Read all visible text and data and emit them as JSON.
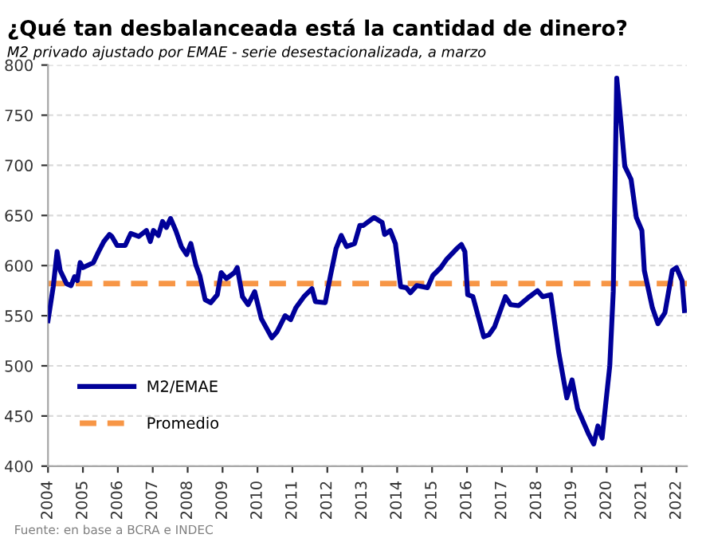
{
  "chart_data": {
    "type": "line",
    "title": "¿Qué tan desbalanceada está la cantidad de dinero?",
    "subtitle": "M2 privado ajustado por EMAE - serie desestacionalizada, a marzo",
    "annotations": [
      "Fuente: en base a BCRA e INDEC"
    ],
    "series": [
      {
        "name": "M2/EMAE",
        "color": "#000099",
        "x": [
          2004.0,
          2004.15,
          2004.26,
          2004.35,
          2004.53,
          2004.66,
          2004.76,
          2004.84,
          2004.92,
          2005.0,
          2005.3,
          2005.45,
          2005.6,
          2005.76,
          2005.83,
          2005.98,
          2006.21,
          2006.37,
          2006.6,
          2006.82,
          2006.93,
          2007.02,
          2007.16,
          2007.28,
          2007.39,
          2007.51,
          2007.66,
          2007.82,
          2007.97,
          2008.09,
          2008.24,
          2008.35,
          2008.5,
          2008.66,
          2008.85,
          2008.96,
          2009.11,
          2009.34,
          2009.42,
          2009.57,
          2009.73,
          2009.92,
          2010.11,
          2010.41,
          2010.56,
          2010.79,
          2010.95,
          2011.1,
          2011.33,
          2011.56,
          2011.66,
          2011.94,
          2012.09,
          2012.25,
          2012.4,
          2012.55,
          2012.78,
          2012.93,
          2013.03,
          2013.34,
          2013.57,
          2013.64,
          2013.8,
          2013.95,
          2014.1,
          2014.26,
          2014.38,
          2014.56,
          2014.87,
          2015.02,
          2015.25,
          2015.41,
          2015.71,
          2015.84,
          2015.94,
          2016.02,
          2016.17,
          2016.48,
          2016.63,
          2016.79,
          2017.1,
          2017.25,
          2017.48,
          2017.79,
          2018.02,
          2018.17,
          2018.4,
          2018.63,
          2018.86,
          2019.01,
          2019.17,
          2019.47,
          2019.63,
          2019.75,
          2019.87,
          2020.09,
          2020.19,
          2020.29,
          2020.42,
          2020.52,
          2020.7,
          2020.85,
          2021.01,
          2021.08,
          2021.31,
          2021.47,
          2021.67,
          2021.88,
          2022.0,
          2022.16,
          2022.23
        ],
        "values": [
          545,
          579,
          614,
          595,
          582,
          580,
          589,
          585,
          603,
          598,
          603,
          614,
          624,
          631,
          629,
          620,
          620,
          632,
          629,
          635,
          624,
          635,
          630,
          644,
          638,
          647,
          635,
          619,
          611,
          622,
          600,
          590,
          566,
          563,
          571,
          593,
          587,
          593,
          598,
          569,
          561,
          574,
          547,
          528,
          534,
          550,
          546,
          558,
          569,
          577,
          564,
          563,
          590,
          617,
          630,
          619,
          622,
          640,
          640,
          648,
          643,
          631,
          635,
          622,
          579,
          578,
          573,
          580,
          578,
          590,
          598,
          606,
          617,
          621,
          614,
          571,
          569,
          529,
          531,
          539,
          569,
          561,
          560,
          569,
          575,
          569,
          571,
          513,
          468,
          486,
          457,
          433,
          422,
          440,
          428,
          500,
          574,
          787,
          739,
          699,
          686,
          648,
          635,
          595,
          558,
          542,
          553,
          595,
          598,
          585,
          555
        ]
      }
    ],
    "ref_lines": [
      {
        "axis": "y",
        "value": 582,
        "label": "Promedio",
        "color": "#f79646",
        "line_style": "dashed"
      }
    ],
    "xlim": [
      2004,
      2022.3
    ],
    "xticks": [
      2004,
      2005,
      2006,
      2007,
      2008,
      2009,
      2010,
      2011,
      2012,
      2013,
      2014,
      2015,
      2016,
      2017,
      2018,
      2019,
      2020,
      2021,
      2022
    ],
    "ylim": [
      400,
      800
    ],
    "yticks": [
      400,
      450,
      500,
      550,
      600,
      650,
      700,
      750,
      800
    ],
    "grid": "y",
    "legend": "bottom left",
    "marker": "none",
    "line_style": "solid"
  }
}
